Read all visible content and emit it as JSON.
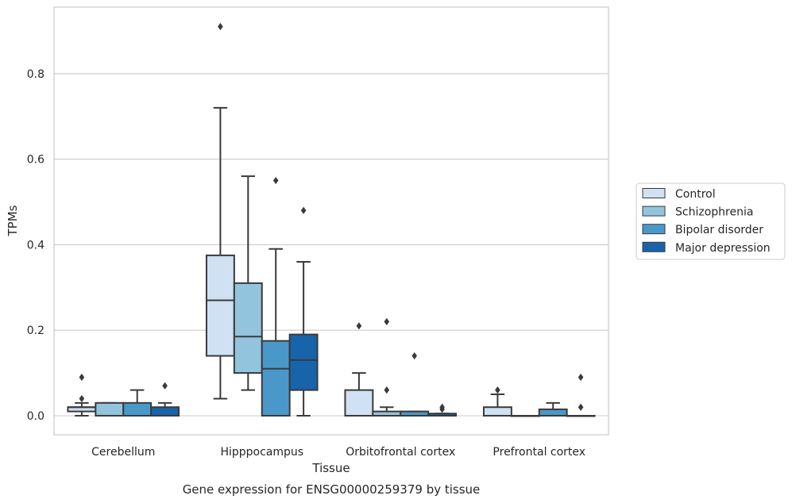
{
  "chart_data": {
    "type": "box",
    "title": "",
    "caption": "Gene expression for ENSG00000259379 by tissue",
    "xlabel": "Tissue",
    "ylabel": "TPMs",
    "ylim": [
      -0.045,
      0.955
    ],
    "yticks": [
      0.0,
      0.2,
      0.4,
      0.6,
      0.8
    ],
    "ytick_labels": [
      "0.0",
      "0.2",
      "0.4",
      "0.6",
      "0.8"
    ],
    "grid": "horizontal",
    "legend_position": "right",
    "categories": [
      "Cerebellum",
      "Hipppocampus",
      "Orbitofrontal cortex",
      "Prefrontal cortex"
    ],
    "series": [
      {
        "name": "Control",
        "color": "#cfe1f2",
        "boxes": [
          {
            "whislo": 0.0,
            "q1": 0.01,
            "med": 0.02,
            "q3": 0.02,
            "whishi": 0.03,
            "fliers": [
              0.04,
              0.09
            ]
          },
          {
            "whislo": 0.04,
            "q1": 0.14,
            "med": 0.27,
            "q3": 0.375,
            "whishi": 0.72,
            "fliers": [
              0.91
            ]
          },
          {
            "whislo": 0.0,
            "q1": 0.0,
            "med": 0.0,
            "q3": 0.06,
            "whishi": 0.1,
            "fliers": [
              0.21
            ]
          },
          {
            "whislo": 0.0,
            "q1": 0.0,
            "med": 0.0,
            "q3": 0.02,
            "whishi": 0.05,
            "fliers": [
              0.06
            ]
          }
        ]
      },
      {
        "name": "Schizophrenia",
        "color": "#93c4de",
        "boxes": [
          {
            "whislo": 0.0,
            "q1": 0.0,
            "med": 0.0,
            "q3": 0.03,
            "whishi": 0.03,
            "fliers": []
          },
          {
            "whislo": 0.06,
            "q1": 0.1,
            "med": 0.185,
            "q3": 0.31,
            "whishi": 0.56,
            "fliers": []
          },
          {
            "whislo": 0.0,
            "q1": 0.0,
            "med": 0.0,
            "q3": 0.01,
            "whishi": 0.02,
            "fliers": [
              0.06,
              0.22
            ]
          },
          {
            "whislo": 0.0,
            "q1": 0.0,
            "med": 0.0,
            "q3": 0.0,
            "whishi": 0.0,
            "fliers": []
          }
        ]
      },
      {
        "name": "Bipolar disorder",
        "color": "#4a98c9",
        "boxes": [
          {
            "whislo": 0.0,
            "q1": 0.0,
            "med": 0.0,
            "q3": 0.03,
            "whishi": 0.06,
            "fliers": []
          },
          {
            "whislo": 0.0,
            "q1": 0.0,
            "med": 0.11,
            "q3": 0.175,
            "whishi": 0.39,
            "fliers": [
              0.55
            ]
          },
          {
            "whislo": 0.0,
            "q1": 0.0,
            "med": 0.0,
            "q3": 0.01,
            "whishi": 0.01,
            "fliers": [
              0.14
            ]
          },
          {
            "whislo": 0.0,
            "q1": 0.0,
            "med": 0.0,
            "q3": 0.015,
            "whishi": 0.03,
            "fliers": []
          }
        ]
      },
      {
        "name": "Major depression",
        "color": "#1764ab",
        "boxes": [
          {
            "whislo": 0.0,
            "q1": 0.0,
            "med": 0.0,
            "q3": 0.02,
            "whishi": 0.03,
            "fliers": [
              0.07
            ]
          },
          {
            "whislo": 0.0,
            "q1": 0.06,
            "med": 0.13,
            "q3": 0.19,
            "whishi": 0.36,
            "fliers": [
              0.48
            ]
          },
          {
            "whislo": 0.0,
            "q1": 0.0,
            "med": 0.0,
            "q3": 0.005,
            "whishi": 0.005,
            "fliers": [
              0.015,
              0.02
            ]
          },
          {
            "whislo": 0.0,
            "q1": 0.0,
            "med": 0.0,
            "q3": 0.0,
            "whishi": 0.0,
            "fliers": [
              0.02,
              0.09
            ]
          }
        ]
      }
    ]
  }
}
